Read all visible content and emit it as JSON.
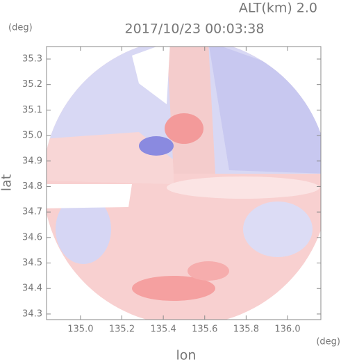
{
  "chart_data": {
    "type": "radar-map",
    "subtitle": "ALT(km) 2.0",
    "title": "2017/10/23 00:03:38",
    "x_label": "lon",
    "y_label": "lat",
    "x_unit": "(deg)",
    "y_unit": "(deg)",
    "xlim": [
      134.836,
      136.161
    ],
    "ylim": [
      34.278,
      35.349
    ],
    "xticks": [
      {
        "value": 135,
        "label": "135.0"
      },
      135.2,
      135.4,
      135.6,
      135.8,
      {
        "value": 136,
        "label": "136.0"
      }
    ],
    "yticks": [
      34.3,
      34.4,
      34.5,
      34.6,
      34.7,
      34.8,
      34.9,
      {
        "value": 35,
        "label": "35.0"
      },
      35.1,
      35.2,
      35.3
    ]
  }
}
